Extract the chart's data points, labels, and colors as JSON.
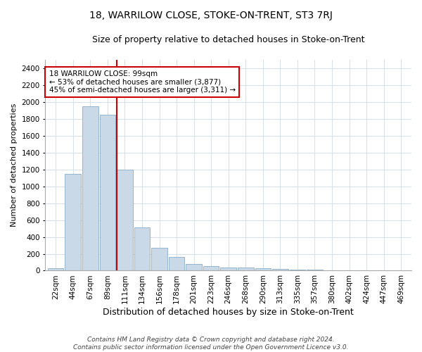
{
  "title": "18, WARRILOW CLOSE, STOKE-ON-TRENT, ST3 7RJ",
  "subtitle": "Size of property relative to detached houses in Stoke-on-Trent",
  "xlabel": "Distribution of detached houses by size in Stoke-on-Trent",
  "ylabel": "Number of detached properties",
  "footer_line1": "Contains HM Land Registry data © Crown copyright and database right 2024.",
  "footer_line2": "Contains public sector information licensed under the Open Government Licence v3.0.",
  "annotation_line1": "18 WARRILOW CLOSE: 99sqm",
  "annotation_line2": "← 53% of detached houses are smaller (3,877)",
  "annotation_line3": "45% of semi-detached houses are larger (3,311) →",
  "categories": [
    "22sqm",
    "44sqm",
    "67sqm",
    "89sqm",
    "111sqm",
    "134sqm",
    "156sqm",
    "178sqm",
    "201sqm",
    "223sqm",
    "246sqm",
    "268sqm",
    "290sqm",
    "313sqm",
    "335sqm",
    "357sqm",
    "380sqm",
    "402sqm",
    "424sqm",
    "447sqm",
    "469sqm"
  ],
  "values": [
    30,
    1150,
    1950,
    1850,
    1200,
    510,
    270,
    160,
    75,
    50,
    40,
    35,
    30,
    20,
    10,
    10,
    5,
    5,
    5,
    2,
    2
  ],
  "ylim": [
    0,
    2500
  ],
  "yticks": [
    0,
    200,
    400,
    600,
    800,
    1000,
    1200,
    1400,
    1600,
    1800,
    2000,
    2200,
    2400
  ],
  "vline_x_index": 3.55,
  "bar_color": "#c9d9e8",
  "bar_edgecolor": "#8aaec8",
  "vline_color": "#cc0000",
  "annotation_boxcolor": "white",
  "annotation_edgecolor": "#cc0000",
  "background_color": "#ffffff",
  "plot_background": "#ffffff",
  "grid_color": "#d8e0e8",
  "title_fontsize": 10,
  "subtitle_fontsize": 9,
  "xlabel_fontsize": 9,
  "ylabel_fontsize": 8,
  "tick_fontsize": 7.5,
  "annotation_fontsize": 7.5,
  "footer_fontsize": 6.5
}
